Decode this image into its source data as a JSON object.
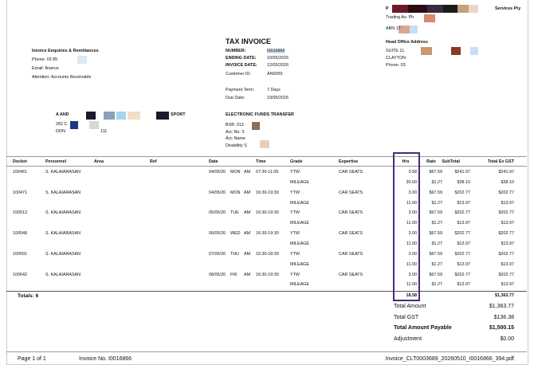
{
  "supplier": {
    "name_start": "P",
    "name_end": "Services Pty",
    "trading_as": "Trading As: Ph",
    "abn": "ABN 17",
    "head_office_title": "Head Office Address",
    "address_1": "SUITE 11,",
    "address_2": "CLAYTON",
    "phone": "Phone: 03"
  },
  "enquiries": {
    "title": "Invoice Enquiries & Remittances",
    "phone": "Phone: 03 85",
    "email": "Email: finance",
    "attention": "Attention: Accounts Receivable"
  },
  "invoice": {
    "title": "TAX INVOICE",
    "number_label": "NUMBER:",
    "number": "I0016866",
    "ending_label": "ENDING DATE:",
    "ending": "10/05/2026",
    "date_label": "INVOICE DATE:",
    "date": "12/05/2026",
    "customer_label": "Customer ID:",
    "customer": "AN0059",
    "term_label": "Payment Term:",
    "term": "7 Days",
    "due_label": "Due Date:",
    "due": "19/05/2026"
  },
  "customer": {
    "name_start": "A AND",
    "name_end": "SPORT",
    "address_1": "282 C",
    "address_2a": "DON",
    "address_2b": "111"
  },
  "eft": {
    "title": "ELECTRONIC FUNDS TRANSFER",
    "bsb": "BSB: 013",
    "acc_no": "Acc No: 3",
    "acc_name": "Acc Name",
    "acc_name_2": "Disability S"
  },
  "table": {
    "columns": [
      "Docket",
      "Personnel",
      "Area",
      "Ref",
      "Date",
      "Time",
      "Grade",
      "Expertise",
      "Hrs",
      "Rate",
      "SubTotal",
      "Total Ex GST"
    ],
    "rows": [
      {
        "docket": "100461",
        "personnel": "S. KALAIARASAN",
        "date": "04/05/26",
        "day": "MON",
        "period": "AM",
        "time": "07:30-11:05",
        "grade": "YTW",
        "expertise": "CAR SEATS",
        "hrs": "3.58",
        "rate": "$67.59",
        "subtotal": "$241.97",
        "total": "$241.97",
        "mileage": {
          "grade": "MILEAGE",
          "hrs": "30.00",
          "rate": "$1.27",
          "subtotal": "$38.10",
          "total": "$38.10"
        }
      },
      {
        "docket": "100471",
        "personnel": "S. KALAIARASAN",
        "date": "04/05/26",
        "day": "MON",
        "period": "AM",
        "time": "16:30-19:30",
        "grade": "YTW",
        "expertise": "CAR SEATS",
        "hrs": "3.00",
        "rate": "$67.59",
        "subtotal": "$202.77",
        "total": "$202.77",
        "mileage": {
          "grade": "MILEAGE",
          "hrs": "11.00",
          "rate": "$1.27",
          "subtotal": "$13.97",
          "total": "$13.97"
        }
      },
      {
        "docket": "100513",
        "personnel": "S. KALAIARASAN",
        "date": "05/05/26",
        "day": "TUE",
        "period": "AM",
        "time": "16:30-19:30",
        "grade": "YTW",
        "expertise": "CAR SEATS",
        "hrs": "3.00",
        "rate": "$67.59",
        "subtotal": "$202.77",
        "total": "$202.77",
        "mileage": {
          "grade": "MILEAGE",
          "hrs": "11.00",
          "rate": "$1.27",
          "subtotal": "$13.97",
          "total": "$13.97"
        }
      },
      {
        "docket": "100548",
        "personnel": "S. KALAIARASAN",
        "date": "06/05/26",
        "day": "WED",
        "period": "AM",
        "time": "16:30-19:30",
        "grade": "YTW",
        "expertise": "CAR SEATS",
        "hrs": "3.00",
        "rate": "$67.59",
        "subtotal": "$202.77",
        "total": "$202.77",
        "mileage": {
          "grade": "MILEAGE",
          "hrs": "11.00",
          "rate": "$1.27",
          "subtotal": "$13.97",
          "total": "$13.97"
        }
      },
      {
        "docket": "100591",
        "personnel": "S. KALAIARASAN",
        "date": "07/05/26",
        "day": "THU",
        "period": "AM",
        "time": "15:30-18:30",
        "grade": "YTW",
        "expertise": "CAR SEATS",
        "hrs": "3.00",
        "rate": "$67.59",
        "subtotal": "$202.77",
        "total": "$202.77",
        "mileage": {
          "grade": "MILEAGE",
          "hrs": "11.00",
          "rate": "$1.27",
          "subtotal": "$13.97",
          "total": "$13.97"
        }
      },
      {
        "docket": "100642",
        "personnel": "S. KALAIARASAN",
        "date": "08/05/26",
        "day": "FRI",
        "period": "AM",
        "time": "16:30-19:30",
        "grade": "YTW",
        "expertise": "CAR SEATS",
        "hrs": "3.00",
        "rate": "$67.59",
        "subtotal": "$202.77",
        "total": "$202.77",
        "mileage": {
          "grade": "MILEAGE",
          "hrs": "11.00",
          "rate": "$1.27",
          "subtotal": "$13.97",
          "total": "$13.97"
        }
      }
    ],
    "totals_label": "Totals: 6",
    "total_hrs": "18.58",
    "total_amount": "$1,363.77"
  },
  "summary": [
    {
      "label": "Total Amount",
      "value": "$1,363.77"
    },
    {
      "label": "Total GST",
      "value": "$136.38"
    },
    {
      "label": "Total Amount Payable",
      "value": "$1,500.15"
    },
    {
      "label": "Adjustment",
      "value": "$0.00"
    }
  ],
  "footer": {
    "page": "Page 1 of 1",
    "invoice_no": "Invoice No. I0016866",
    "file": "Invoice_CLT0003689_20260510_I0016866_394.pdf"
  }
}
